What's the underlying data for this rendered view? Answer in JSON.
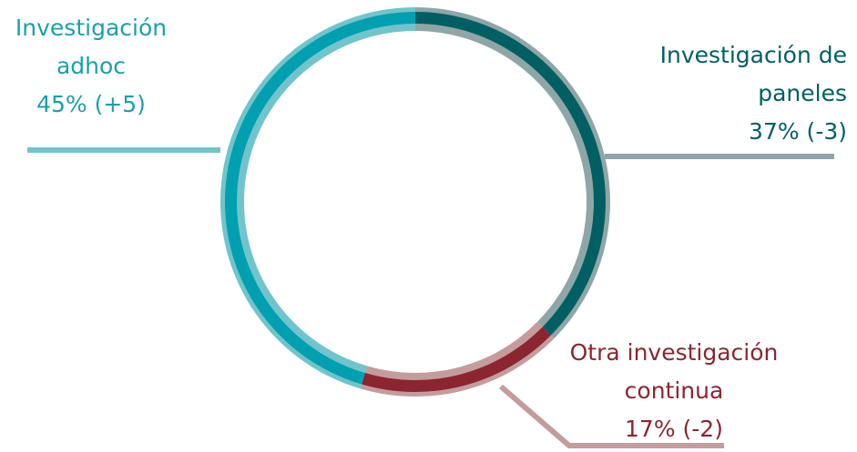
{
  "chart_data": {
    "type": "donut",
    "categories": [
      "Investigación de paneles",
      "Otra investigación continua",
      "Investigación adhoc"
    ],
    "values": [
      37,
      17,
      45
    ],
    "value_labels": [
      "37% (-3)",
      "17% (-2)",
      "45% (+5)"
    ],
    "colors": [
      "#005f63",
      "#8b2530",
      "#00a0b0"
    ],
    "light_colors": [
      "#8fa6a7",
      "#c49c9c",
      "#72c4cc"
    ]
  }
}
